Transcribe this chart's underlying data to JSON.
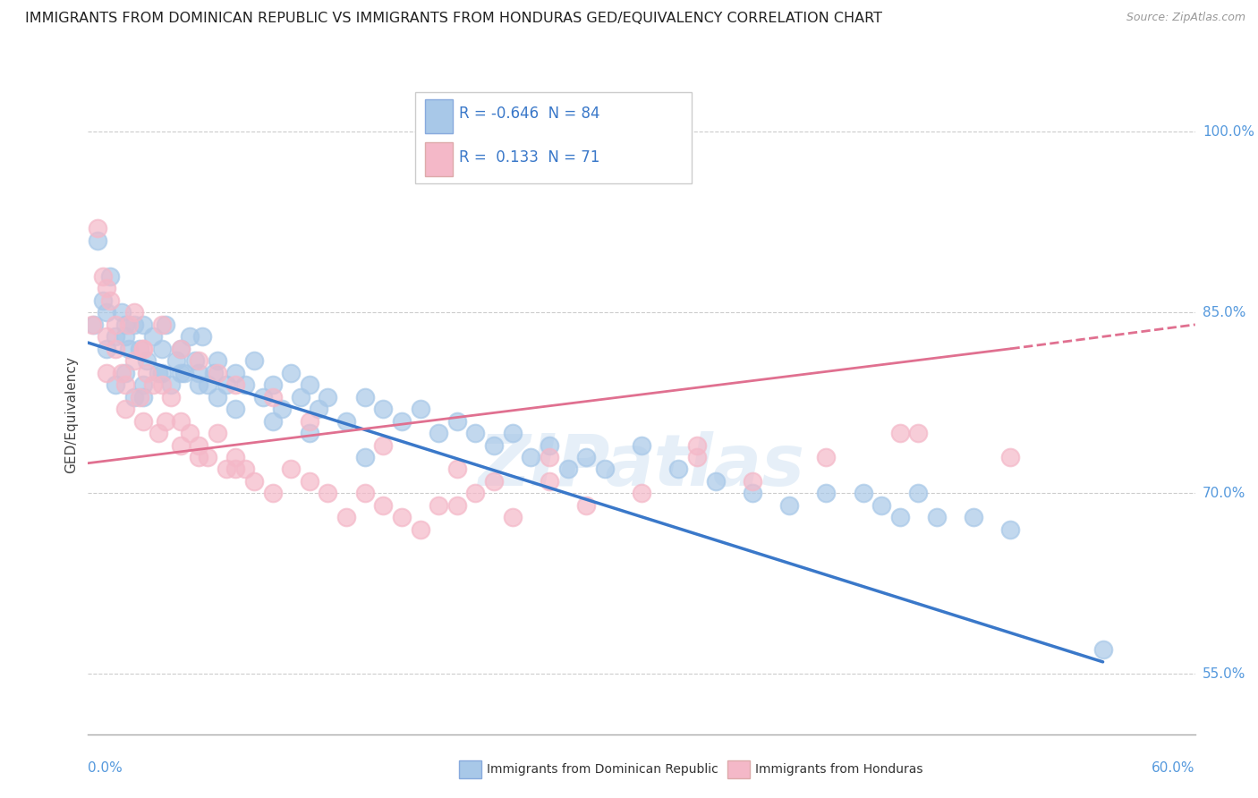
{
  "title": "IMMIGRANTS FROM DOMINICAN REPUBLIC VS IMMIGRANTS FROM HONDURAS GED/EQUIVALENCY CORRELATION CHART",
  "source": "Source: ZipAtlas.com",
  "ylabel_label": "GED/Equivalency",
  "legend_blue_label": "Immigrants from Dominican Republic",
  "legend_pink_label": "Immigrants from Honduras",
  "R_blue": -0.646,
  "N_blue": 84,
  "R_pink": 0.133,
  "N_pink": 71,
  "blue_color": "#a8c8e8",
  "pink_color": "#f4b8c8",
  "blue_line_color": "#3a78c9",
  "pink_line_color": "#e07090",
  "watermark": "ZIPatlas",
  "xlim": [
    0.0,
    60.0
  ],
  "ylim": [
    50.0,
    103.0
  ],
  "blue_scatter_x": [
    0.3,
    0.5,
    0.8,
    1.0,
    1.0,
    1.2,
    1.5,
    1.5,
    1.8,
    2.0,
    2.0,
    2.2,
    2.5,
    2.5,
    2.8,
    3.0,
    3.0,
    3.2,
    3.5,
    3.8,
    4.0,
    4.2,
    4.5,
    4.8,
    5.0,
    5.2,
    5.5,
    5.8,
    6.0,
    6.2,
    6.5,
    6.8,
    7.0,
    7.5,
    8.0,
    8.5,
    9.0,
    9.5,
    10.0,
    10.5,
    11.0,
    11.5,
    12.0,
    12.5,
    13.0,
    14.0,
    15.0,
    16.0,
    17.0,
    18.0,
    19.0,
    20.0,
    21.0,
    22.0,
    23.0,
    24.0,
    25.0,
    26.0,
    27.0,
    28.0,
    30.0,
    32.0,
    34.0,
    36.0,
    38.0,
    40.0,
    42.0,
    43.0,
    44.0,
    45.0,
    46.0,
    48.0,
    50.0,
    55.0,
    2.0,
    3.0,
    4.0,
    5.0,
    6.0,
    7.0,
    8.0,
    10.0,
    12.0,
    15.0
  ],
  "blue_scatter_y": [
    84,
    91,
    86,
    85,
    82,
    88,
    83,
    79,
    85,
    80,
    84,
    82,
    84,
    78,
    82,
    84,
    79,
    81,
    83,
    80,
    82,
    84,
    79,
    81,
    82,
    80,
    83,
    81,
    80,
    83,
    79,
    80,
    81,
    79,
    80,
    79,
    81,
    78,
    79,
    77,
    80,
    78,
    79,
    77,
    78,
    76,
    78,
    77,
    76,
    77,
    75,
    76,
    75,
    74,
    75,
    73,
    74,
    72,
    73,
    72,
    74,
    72,
    71,
    70,
    69,
    70,
    70,
    69,
    68,
    70,
    68,
    68,
    67,
    57,
    83,
    78,
    80,
    80,
    79,
    78,
    77,
    76,
    75,
    73
  ],
  "pink_scatter_x": [
    0.2,
    0.5,
    0.8,
    1.0,
    1.2,
    1.5,
    1.8,
    2.0,
    2.2,
    2.5,
    2.8,
    3.0,
    3.2,
    3.5,
    3.8,
    4.0,
    4.2,
    4.5,
    5.0,
    5.5,
    6.0,
    6.5,
    7.0,
    7.5,
    8.0,
    8.5,
    9.0,
    10.0,
    11.0,
    12.0,
    13.0,
    14.0,
    15.0,
    16.0,
    17.0,
    18.0,
    19.0,
    20.0,
    21.0,
    22.0,
    23.0,
    25.0,
    27.0,
    30.0,
    33.0,
    36.0,
    40.0,
    45.0,
    50.0,
    1.0,
    1.5,
    2.5,
    3.0,
    4.0,
    5.0,
    6.0,
    7.0,
    8.0,
    10.0,
    12.0,
    16.0,
    20.0,
    25.0,
    33.0,
    44.0,
    1.0,
    2.0,
    3.0,
    5.0,
    6.0,
    8.0
  ],
  "pink_scatter_y": [
    84,
    92,
    88,
    83,
    86,
    82,
    80,
    79,
    84,
    81,
    78,
    82,
    80,
    79,
    75,
    79,
    76,
    78,
    76,
    75,
    74,
    73,
    75,
    72,
    73,
    72,
    71,
    70,
    72,
    71,
    70,
    68,
    70,
    69,
    68,
    67,
    69,
    69,
    70,
    71,
    68,
    71,
    69,
    70,
    73,
    71,
    73,
    75,
    73,
    87,
    84,
    85,
    82,
    84,
    82,
    81,
    80,
    79,
    78,
    76,
    74,
    72,
    73,
    74,
    75,
    80,
    77,
    76,
    74,
    73,
    72
  ],
  "blue_line_x0": 0.0,
  "blue_line_x1": 55.0,
  "blue_line_y0": 82.5,
  "blue_line_y1": 56.0,
  "pink_line_x0": 0.0,
  "pink_line_x1": 50.0,
  "pink_line_y0": 72.5,
  "pink_line_y1": 82.0,
  "pink_dash_x0": 50.0,
  "pink_dash_x1": 60.0,
  "pink_dash_y0": 82.0,
  "pink_dash_y1": 84.0,
  "y_ticks": [
    55,
    70,
    85,
    100
  ],
  "y_tick_labels": [
    "55.0%",
    "70.0%",
    "85.0%",
    "100.0%"
  ]
}
